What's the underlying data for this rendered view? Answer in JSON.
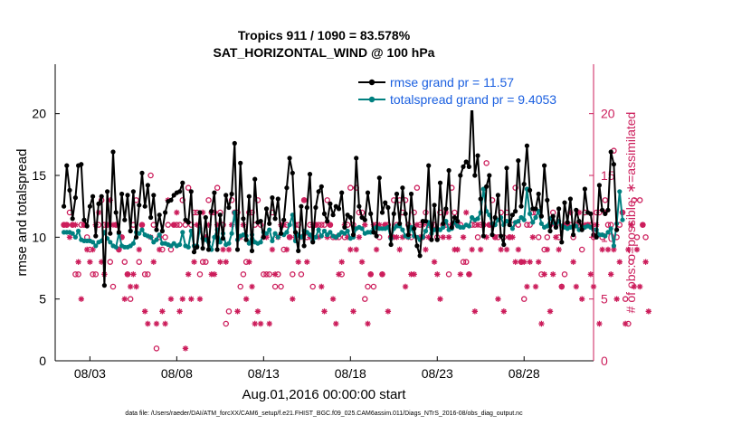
{
  "title_line1": "Tropics 911 / 1090 = 83.578%",
  "title_line2": "SAT_HORIZONTAL_WIND @ 100 hPa",
  "xlabel": "Aug.01,2016 00:00:00 start",
  "ylabel": "rmse and totalspread",
  "ylabel_right": "# of obs: o=possible; ∗=assimilated",
  "footer": "data file: /Users/raeder/DAI/ATM_forcXX/CAM6_setup/f.e21.FHIST_BGC.f09_025.CAM6assim.011/Diags_NTrS_2016-08/obs_diag_output.nc",
  "colors": {
    "rmse": "#000000",
    "spread": "#008080",
    "obs": "#cc1d5b",
    "legend_text": "#1a5fe0"
  },
  "chart_data": {
    "type": "line",
    "title": "Tropics 911 / 1090 = 83.578% SAT_HORIZONTAL_WIND @ 100 hPa",
    "x_unit": "days since Aug.01,2016 00:00:00",
    "xlim": [
      0.5,
      31.5
    ],
    "ylim": [
      0,
      24
    ],
    "yticks": [
      0,
      5,
      10,
      15,
      20
    ],
    "ylim_right": [
      0,
      24
    ],
    "yticks_right": [
      0,
      5,
      10,
      15,
      20
    ],
    "xticks": [
      {
        "day": 2.5,
        "label": "08/03"
      },
      {
        "day": 7.5,
        "label": "08/08"
      },
      {
        "day": 12.5,
        "label": "08/13"
      },
      {
        "day": 17.5,
        "label": "08/18"
      },
      {
        "day": 22.5,
        "label": "08/23"
      },
      {
        "day": 27.5,
        "label": "08/28"
      }
    ],
    "series": [
      {
        "name": "rmse",
        "legend": "rmse grand pr = 11.57",
        "values": [
          12.5,
          15.8,
          13.8,
          11.5,
          13.2,
          15.8,
          15.9,
          11.4,
          10.9,
          12.5,
          13.3,
          10.1,
          12.7,
          13.3,
          6.1,
          13.7,
          10.3,
          16.9,
          12.0,
          10.4,
          13.5,
          11.4,
          13.4,
          10.5,
          13.7,
          10.0,
          12.6,
          15.2,
          12.5,
          14.2,
          11.6,
          13.4,
          10.6,
          11.8,
          10.5,
          12.0,
          12.9,
          13.0,
          13.4,
          13.6,
          13.7,
          14.4,
          11.4,
          11.2,
          13.7,
          8.8,
          9.2,
          12.0,
          9.1,
          11.6,
          9.0,
          12.1,
          13.6,
          9.0,
          11.8,
          9.9,
          13.4,
          12.4,
          13.5,
          17.6,
          9.0,
          16.0,
          11.5,
          9.8,
          13.3,
          8.9,
          14.7,
          11.2,
          11.3,
          10.0,
          12.3,
          11.1,
          13.2,
          11.5,
          13.1,
          10.3,
          11.4,
          14.0,
          16.4,
          15.2,
          10.4,
          8.9,
          12.5,
          9.3,
          12.4,
          15.1,
          9.6,
          12.4,
          13.7,
          14.1,
          11.9,
          11.3,
          12.7,
          11.8,
          12.5,
          12.3,
          13.6,
          10.8,
          11.8,
          11.6,
          10.2,
          16.4,
          12.5,
          11.6,
          11.4,
          13.6,
          11.9,
          10.4,
          10.1,
          14.8,
          12.0,
          12.8,
          12.4,
          9.4,
          11.9,
          13.5,
          11.1,
          14.0,
          11.9,
          10.2,
          13.5,
          10.7,
          9.3,
          8.5,
          11.3,
          11.3,
          15.8,
          9.8,
          12.6,
          9.8,
          14.4,
          11.1,
          12.3,
          15.4,
          10.8,
          11.6,
          11.3,
          15.0,
          15.7,
          16.1,
          15.7,
          21.3,
          15.0,
          16.6,
          13.1,
          10.1,
          14.1,
          15.0,
          10.2,
          11.6,
          13.4,
          10.1,
          9.4,
          15.6,
          11.0,
          11.8,
          12.1,
          16.2,
          12.5,
          14.3,
          17.4,
          13.8,
          12.3,
          12.3,
          13.5,
          11.7,
          15.8,
          13.0,
          10.5,
          11.7,
          10.8,
          12.3,
          9.6,
          12.8,
          11.2,
          13.1,
          10.2,
          12.2,
          11.3,
          10.6,
          13.9,
          12.0,
          11.9,
          10.2,
          10.0,
          14.2,
          12.2,
          11.9,
          12.2,
          16.9,
          15.9,
          10.6
        ]
      },
      {
        "name": "totalspread",
        "legend": "totalspread grand pr = 9.4053",
        "values": [
          10.4,
          10.4,
          10.4,
          10.3,
          10.0,
          10.5,
          9.8,
          9.7,
          9.7,
          9.7,
          9.6,
          9.3,
          9.6,
          9.7,
          10.4,
          9.9,
          9.6,
          9.3,
          9.2,
          10.3,
          9.3,
          9.2,
          9.2,
          9.3,
          9.5,
          10.4,
          10.3,
          10.6,
          10.2,
          10.1,
          10.0,
          9.6,
          9.8,
          10.2,
          9.5,
          9.5,
          9.4,
          9.3,
          9.5,
          9.3,
          9.4,
          10.4,
          9.3,
          9.2,
          10.5,
          9.3,
          9.3,
          10.7,
          9.9,
          9.8,
          9.6,
          9.0,
          10.0,
          10.6,
          9.6,
          10.3,
          9.4,
          9.5,
          10.3,
          12.0,
          9.8,
          10.1,
          10.2,
          10.1,
          9.5,
          10.2,
          9.6,
          9.5,
          9.6,
          10.4,
          10.3,
          10.6,
          9.7,
          10.3,
          10.0,
          10.3,
          10.2,
          10.4,
          11.0,
          11.8,
          9.7,
          10.2,
          10.0,
          10.5,
          10.4,
          10.2,
          9.7,
          10.0,
          10.6,
          10.1,
          10.5,
          10.2,
          10.4,
          10.1,
          10.0,
          10.2,
          10.4,
          10.3,
          10.5,
          9.9,
          10.0,
          10.7,
          10.8,
          10.7,
          10.3,
          10.4,
          10.4,
          10.7,
          10.8,
          10.7,
          10.7,
          10.7,
          10.8,
          9.9,
          10.7,
          10.9,
          10.9,
          10.6,
          10.1,
          10.0,
          10.8,
          10.1,
          10.0,
          9.8,
          10.0,
          10.5,
          11.2,
          10.3,
          10.6,
          10.7,
          10.6,
          10.8,
          11.3,
          10.6,
          10.7,
          11.2,
          10.9,
          10.8,
          10.8,
          11.0,
          10.9,
          11.6,
          11.4,
          11.5,
          12.0,
          13.9,
          12.1,
          11.8,
          11.1,
          11.0,
          11.4,
          11.6,
          11.0,
          11.3,
          11.2,
          10.7,
          11.2,
          11.3,
          11.6,
          11.4,
          13.9,
          11.9,
          11.2,
          11.6,
          12.1,
          11.1,
          10.8,
          10.9,
          11.5,
          11.2,
          10.8,
          11.3,
          10.9,
          10.8,
          10.7,
          10.8,
          10.9,
          10.9,
          10.6,
          10.8,
          10.8,
          10.9,
          10.8,
          10.6,
          10.6,
          10.2,
          10.2,
          10.1,
          10.4,
          10.7,
          9.3,
          11.1,
          13.7,
          11.4
        ]
      },
      {
        "name": "obs_possible",
        "marker": "o",
        "axis": "right",
        "values": [
          11,
          11,
          12,
          11,
          7,
          7,
          11,
          11,
          10,
          9,
          7,
          7,
          11,
          13,
          11,
          11,
          8,
          6,
          11,
          9,
          10,
          8,
          7,
          5,
          11,
          13,
          8,
          11,
          7,
          7,
          15,
          11,
          1,
          10,
          9,
          10,
          11,
          9,
          11,
          11,
          11,
          13,
          11,
          14,
          11,
          12,
          12,
          7,
          8,
          8,
          13,
          12,
          12,
          14,
          12,
          11,
          3,
          4,
          13,
          12,
          12,
          6,
          7,
          8,
          12,
          12,
          11,
          13,
          11,
          7,
          7,
          7,
          12,
          6,
          7,
          6,
          9,
          11,
          10,
          7,
          11,
          11,
          7,
          13,
          10,
          11,
          6,
          11,
          11,
          11,
          11,
          13,
          11,
          10,
          10,
          10,
          7,
          10,
          11,
          14,
          11,
          14,
          12,
          12,
          5,
          6,
          7,
          6,
          11,
          10,
          7,
          11,
          11,
          10,
          13,
          11,
          13,
          12,
          13,
          11,
          10,
          12,
          14,
          11,
          10,
          12,
          11,
          11,
          11,
          10,
          12,
          11,
          11,
          7,
          14,
          12,
          11,
          11,
          8,
          8,
          7,
          11,
          11,
          10,
          11,
          11,
          16,
          11,
          13,
          10,
          10,
          12,
          10,
          12,
          10,
          11,
          14,
          11,
          8,
          5,
          11,
          11,
          12,
          12,
          10,
          7,
          9,
          10,
          11,
          12,
          11,
          10,
          6,
          7,
          11,
          11,
          10,
          11,
          11,
          9,
          12,
          11,
          11,
          10,
          12,
          12,
          10,
          13,
          11,
          11,
          17,
          10,
          11,
          12,
          5,
          3,
          8,
          13,
          10,
          13,
          11,
          10
        ]
      },
      {
        "name": "obs_assimilated",
        "marker": "*",
        "axis": "right",
        "values": [
          11,
          11,
          10,
          11,
          11,
          8,
          5,
          11,
          9,
          8,
          9,
          11,
          12,
          8,
          7,
          11,
          13,
          11,
          11,
          9,
          10,
          5,
          7,
          6,
          7,
          6,
          9,
          11,
          4,
          3,
          10,
          8,
          3,
          9,
          4,
          3,
          13,
          5,
          11,
          12,
          4,
          5,
          1,
          7,
          5,
          8,
          11,
          5,
          12,
          10,
          11,
          7,
          7,
          11,
          8,
          9,
          8,
          9,
          11,
          12,
          4,
          10,
          11,
          5,
          8,
          6,
          3,
          4,
          3,
          10,
          10,
          3,
          9,
          7,
          10,
          11,
          11,
          9,
          10,
          5,
          10,
          8,
          10,
          13,
          8,
          10,
          11,
          11,
          10,
          6,
          4,
          10,
          11,
          5,
          3,
          7,
          8,
          11,
          10,
          9,
          4,
          9,
          10,
          8,
          11,
          3,
          7,
          11,
          9,
          11,
          7,
          11,
          4,
          10,
          10,
          10,
          9,
          10,
          6,
          10,
          7,
          7,
          11,
          10,
          11,
          9,
          10,
          11,
          8,
          7,
          5,
          10,
          12,
          10,
          11,
          9,
          9,
          7,
          10,
          12,
          7,
          9,
          4,
          11,
          9,
          11,
          10,
          11,
          11,
          10,
          5,
          9,
          4,
          9,
          10,
          10,
          8,
          9,
          8,
          8,
          6,
          8,
          10,
          6,
          8,
          3,
          7,
          9,
          4,
          7,
          10,
          9,
          6,
          11,
          11,
          12,
          8,
          6,
          12,
          5,
          11,
          11,
          7,
          6,
          11,
          3,
          9,
          12,
          9,
          7,
          9,
          5,
          8,
          12,
          3,
          9,
          11,
          6,
          9,
          6,
          11,
          8,
          4
        ]
      }
    ]
  }
}
